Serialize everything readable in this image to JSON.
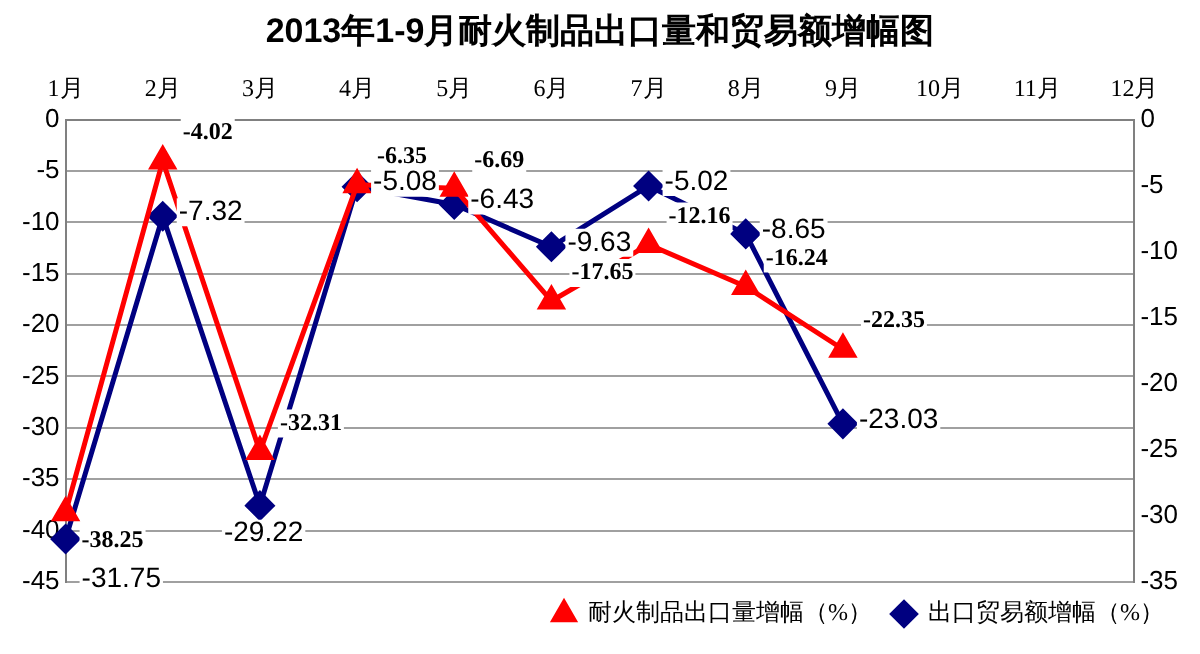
{
  "chart_data": {
    "type": "line",
    "title": "2013年1-9月耐火制品出口量和贸易额增幅图",
    "categories": [
      "1月",
      "2月",
      "3月",
      "4月",
      "5月",
      "6月",
      "7月",
      "8月",
      "9月",
      "10月",
      "11月",
      "12月"
    ],
    "series": [
      {
        "name": "耐火制品出口量增幅（%）",
        "color": "#ff0000",
        "marker": "triangle",
        "values": [
          -38.25,
          -4.02,
          -32.31,
          -6.35,
          -6.69,
          -17.65,
          -12.16,
          -16.24,
          -22.35,
          null,
          null,
          null
        ]
      },
      {
        "name": "出口贸易额增幅（%）",
        "color": "#000080",
        "marker": "diamond",
        "axis": "y2",
        "values": [
          -31.75,
          -7.32,
          -29.22,
          -5.08,
          -6.43,
          -9.63,
          -5.02,
          -8.65,
          -23.03,
          null,
          null,
          null
        ]
      }
    ],
    "ylim": [
      -45,
      0
    ],
    "yticks": [
      -45,
      -40,
      -35,
      -30,
      -25,
      -20,
      -15,
      -10,
      -5,
      0
    ],
    "y2lim": [
      -35,
      0
    ],
    "y2ticks": [
      -35,
      -30,
      -25,
      -20,
      -15,
      -10,
      -5,
      0
    ],
    "grid": "y",
    "legend": "bottom right",
    "data_labels": true
  }
}
